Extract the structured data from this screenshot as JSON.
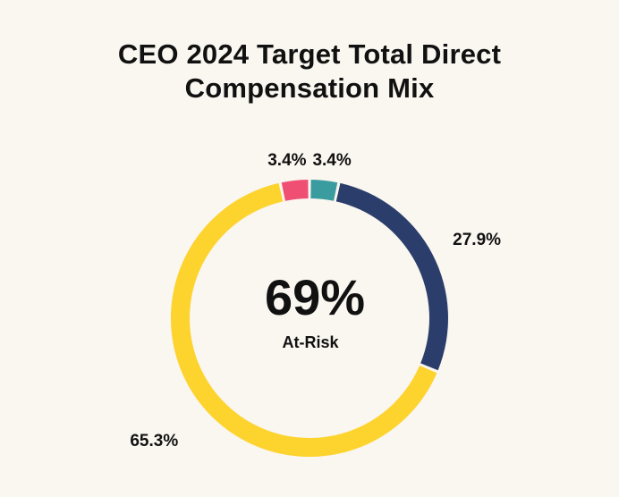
{
  "chart_data": {
    "type": "pie",
    "title_line1": "CEO 2024 Target Total Direct",
    "title_line2": "Compensation Mix",
    "center_value": "69%",
    "center_label": "At-Risk",
    "segments": [
      {
        "label": "3.4%",
        "value": 3.4,
        "color": "#3a9c9f"
      },
      {
        "label": "27.9%",
        "value": 27.9,
        "color": "#2b3e6b"
      },
      {
        "label": "65.3%",
        "value": 65.3,
        "color": "#fdd32d"
      },
      {
        "label": "3.4%",
        "value": 3.4,
        "color": "#ef4f72"
      }
    ],
    "background": "#faf6f0"
  }
}
